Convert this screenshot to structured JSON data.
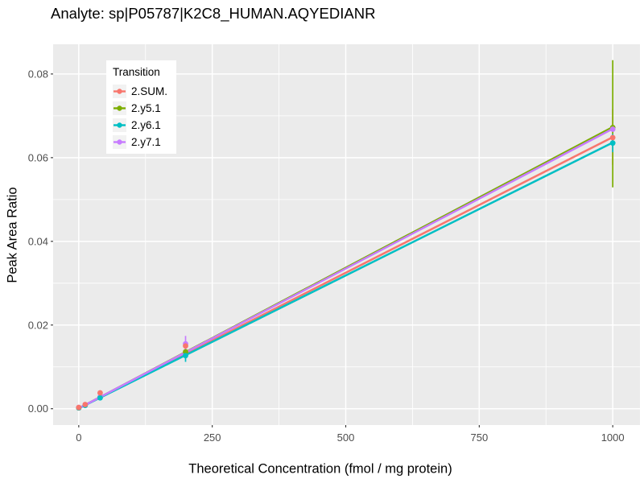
{
  "chart": {
    "title": "Analyte: sp|P05787|K2C8_HUMAN.AQYEDIANR",
    "xlabel": "Theoretical Concentration (fmol / mg protein)",
    "ylabel": "Peak Area Ratio"
  },
  "legend": {
    "title": "Transition",
    "items": [
      {
        "label": "2.SUM.",
        "color": "#F8766D"
      },
      {
        "label": "2.y5.1",
        "color": "#7CAE00"
      },
      {
        "label": "2.y6.1",
        "color": "#00BFC4"
      },
      {
        "label": "2.y7.1",
        "color": "#C77CFF"
      }
    ]
  },
  "chart_data": {
    "type": "scatter",
    "title": "Analyte: sp|P05787|K2C8_HUMAN.AQYEDIANR",
    "xlabel": "Theoretical Concentration (fmol / mg protein)",
    "ylabel": "Peak Area Ratio",
    "xlim": [
      -48,
      1051
    ],
    "ylim": [
      -0.0039,
      0.0871
    ],
    "xticks": {
      "values": [
        0,
        250,
        500,
        750,
        1000
      ],
      "labels": [
        "0",
        "250",
        "500",
        "750",
        "1000"
      ]
    },
    "yticks": {
      "values": [
        0,
        0.02,
        0.04,
        0.06,
        0.08
      ],
      "labels": [
        "0.00",
        "0.02",
        "0.04",
        "0.06",
        "0.08"
      ]
    },
    "xminor": [
      125,
      375,
      625,
      875
    ],
    "yminor": [
      0.01,
      0.03,
      0.05,
      0.07
    ],
    "grid": true,
    "legend_position": "inside-top-left",
    "panel_bg": "#EBEBEB",
    "grid_color": "#FFFFFF",
    "tick_color": "#333333",
    "tick_label_color": "#4D4D4D",
    "series": [
      {
        "name": "2.SUM.",
        "color": "#F8766D",
        "line": {
          "x": [
            0,
            1000
          ],
          "y": [
            0.0001,
            0.0649
          ]
        },
        "points": [
          {
            "x": 0,
            "y": 0.0003
          },
          {
            "x": 12,
            "y": 0.001
          },
          {
            "x": 40,
            "y": 0.0038
          },
          {
            "x": 200,
            "y": 0.015
          },
          {
            "x": 1000,
            "y": 0.0648
          }
        ],
        "error_bars": [
          {
            "x": 1000,
            "ymin": 0.0583,
            "ymax": 0.0716
          }
        ]
      },
      {
        "name": "2.y5.1",
        "color": "#7CAE00",
        "line": {
          "x": [
            0,
            1000
          ],
          "y": [
            0.0001,
            0.0673
          ]
        },
        "points": [
          {
            "x": 0,
            "y": 0.0002
          },
          {
            "x": 40,
            "y": 0.0027
          },
          {
            "x": 200,
            "y": 0.0136
          },
          {
            "x": 1000,
            "y": 0.0672
          }
        ],
        "error_bars": [
          {
            "x": 1000,
            "ymin": 0.0529,
            "ymax": 0.0833
          }
        ]
      },
      {
        "name": "2.y6.1",
        "color": "#00BFC4",
        "line": {
          "x": [
            0,
            1000
          ],
          "y": [
            0.0001,
            0.0636
          ]
        },
        "points": [
          {
            "x": 0,
            "y": 0.0002
          },
          {
            "x": 12,
            "y": 0.0008
          },
          {
            "x": 40,
            "y": 0.0026
          },
          {
            "x": 200,
            "y": 0.0127
          },
          {
            "x": 1000,
            "y": 0.0635
          }
        ],
        "error_bars": [
          {
            "x": 200,
            "ymin": 0.0112,
            "ymax": 0.0142
          },
          {
            "x": 1000,
            "ymin": 0.0613,
            "ymax": 0.0657
          }
        ]
      },
      {
        "name": "2.y7.1",
        "color": "#C77CFF",
        "line": {
          "x": [
            0,
            1000
          ],
          "y": [
            0.0001,
            0.0669
          ]
        },
        "points": [
          {
            "x": 0,
            "y": 0.0003
          },
          {
            "x": 12,
            "y": 0.0009
          },
          {
            "x": 40,
            "y": 0.0028
          },
          {
            "x": 200,
            "y": 0.0155
          },
          {
            "x": 1000,
            "y": 0.0668
          }
        ],
        "error_bars": [
          {
            "x": 200,
            "ymin": 0.0137,
            "ymax": 0.0174
          }
        ]
      }
    ]
  }
}
